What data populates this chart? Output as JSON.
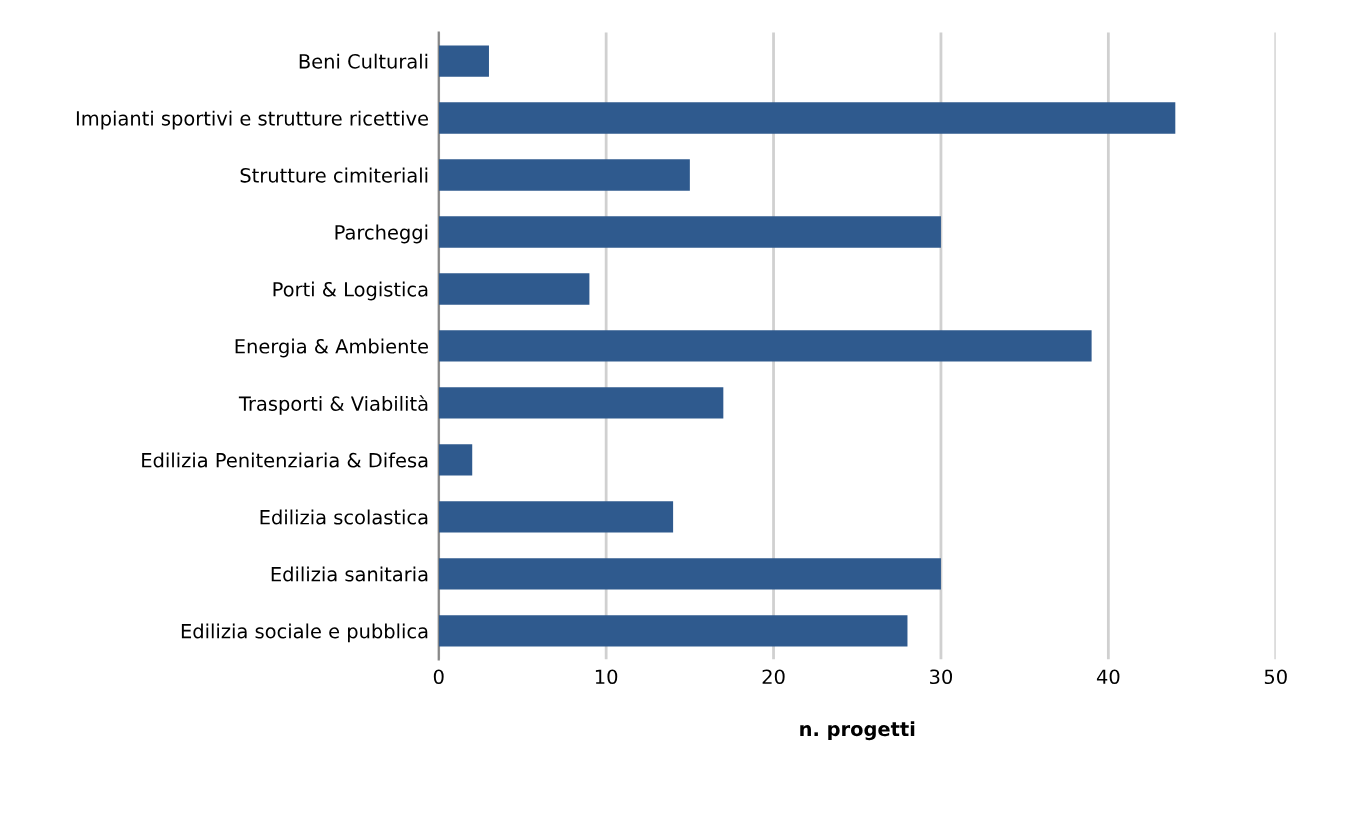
{
  "chart_data": {
    "type": "bar",
    "orientation": "horizontal",
    "xlabel": "n. progetti",
    "categories": [
      "Beni Culturali",
      "Impianti sportivi e strutture ricettive",
      "Strutture cimiteriali",
      "Parcheggi",
      "Porti & Logistica",
      "Energia & Ambiente",
      "Trasporti & Viabilità",
      "Edilizia Penitenziaria & Difesa",
      "Edilizia scolastica",
      "Edilizia sanitaria",
      "Edilizia sociale e pubblica"
    ],
    "values": [
      3,
      44,
      15,
      30,
      9,
      39,
      17,
      2,
      14,
      30,
      28
    ],
    "color": "#2f5a8e",
    "xlim": [
      0,
      50
    ],
    "xticks": [
      0,
      10,
      20,
      30,
      40,
      50
    ],
    "grid": "x",
    "legend": false
  }
}
